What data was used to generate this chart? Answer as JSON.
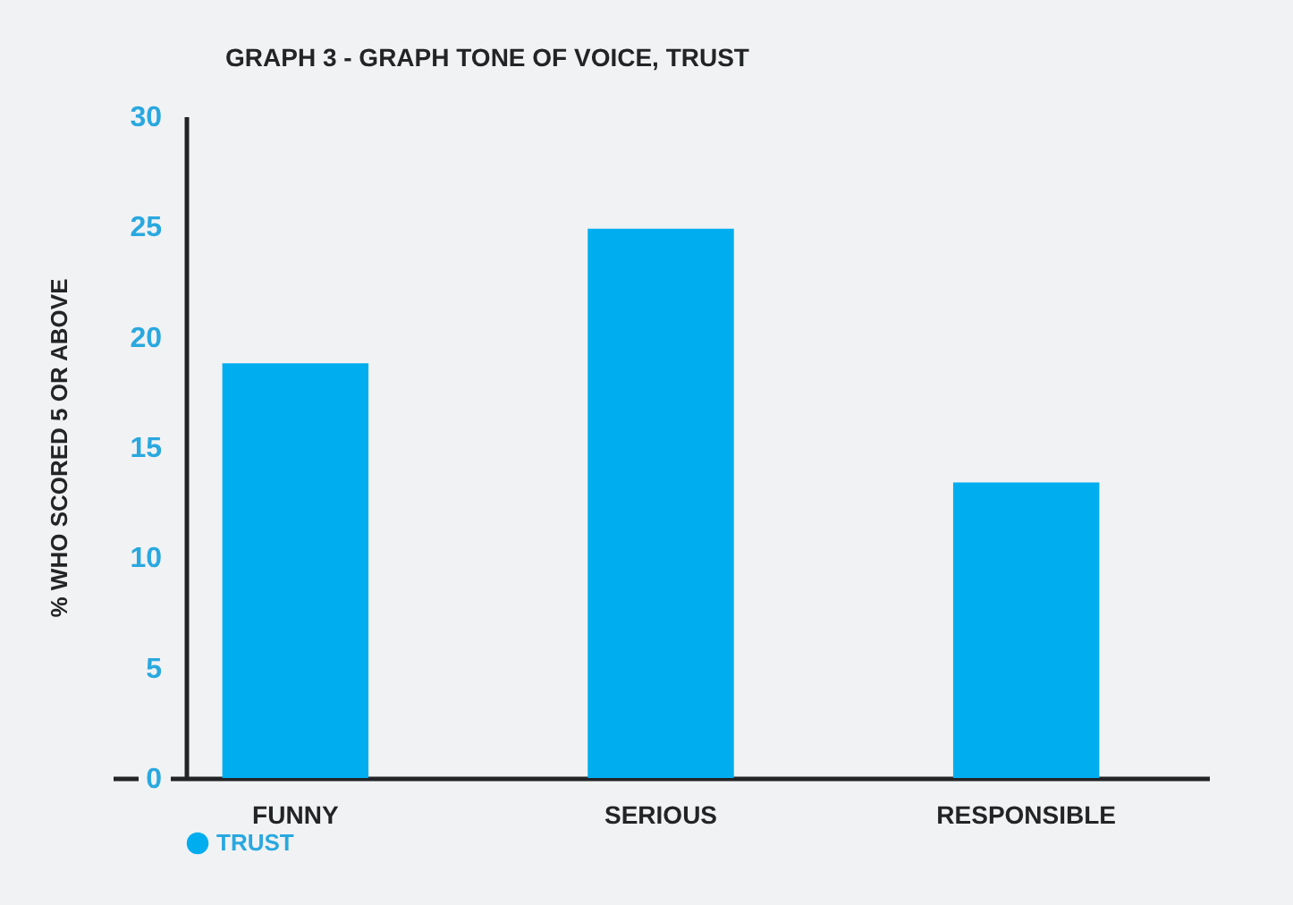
{
  "chart_data": {
    "type": "bar",
    "title": "GRAPH 3 - GRAPH TONE OF VOICE, TRUST",
    "ylabel": "% WHO SCORED 5 OR ABOVE",
    "categories": [
      "FUNNY",
      "SERIOUS",
      "RESPONSIBLE"
    ],
    "series": [
      {
        "name": "TRUST",
        "color": "#00aeef",
        "values": [
          18.8,
          24.9,
          13.4
        ]
      }
    ],
    "ylim": [
      0,
      30
    ],
    "yticks": [
      0,
      5,
      10,
      15,
      20,
      25,
      30
    ],
    "grid": false,
    "legend": "bottom left"
  }
}
